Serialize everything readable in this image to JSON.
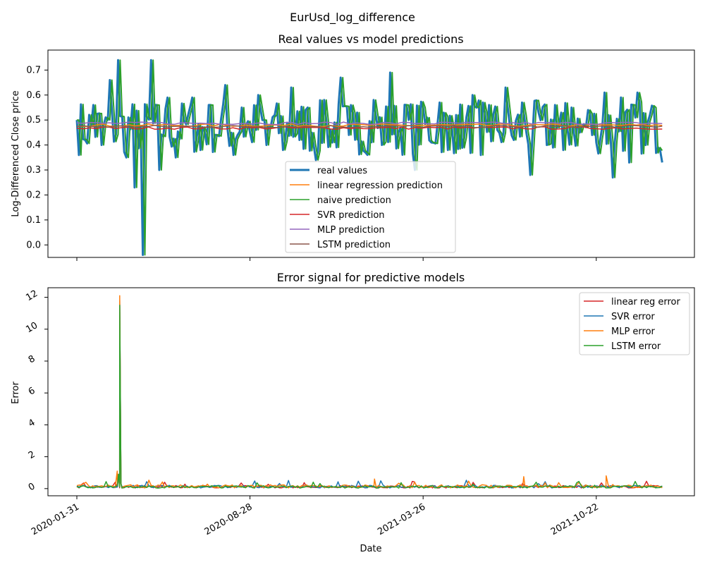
{
  "figure": {
    "suptitle": "EurUsd_log_difference"
  },
  "colors": {
    "real": "#1f77b4",
    "linreg": "#ff7f0e",
    "naive": "#2ca02c",
    "svr": "#d62728",
    "mlp": "#9467bd",
    "lstm": "#8c564b"
  },
  "chart_data": [
    {
      "type": "line",
      "title": "Real values vs model predictions",
      "xlabel": "",
      "ylabel": "Log-Differenced Close price",
      "ylim": [
        -0.05,
        0.78
      ],
      "yticks": [
        0.0,
        0.1,
        0.2,
        0.3,
        0.4,
        0.5,
        0.6,
        0.7
      ],
      "ytick_labels": [
        "0.0",
        "0.1",
        "0.2",
        "0.3",
        "0.4",
        "0.5",
        "0.6",
        "0.7"
      ],
      "x_range": [
        "2020-01-31",
        "2022-01-14"
      ],
      "legend_position": "lower-center",
      "grid": false,
      "series": [
        {
          "name": "real values",
          "color_key": "real",
          "x": [
            "2020-01-31",
            "2020-02-10",
            "2020-02-20",
            "2020-03-01",
            "2020-03-11",
            "2020-03-21",
            "2020-03-31",
            "2020-04-10",
            "2020-04-20",
            "2020-04-30",
            "2020-05-10",
            "2020-05-20",
            "2020-05-30",
            "2020-06-09",
            "2020-06-19",
            "2020-06-29",
            "2020-07-09",
            "2020-07-19",
            "2020-07-29",
            "2020-08-08",
            "2020-08-18",
            "2020-08-28",
            "2020-09-07",
            "2020-09-17",
            "2020-09-27",
            "2020-10-07",
            "2020-10-17",
            "2020-10-27",
            "2020-11-06",
            "2020-11-16",
            "2020-11-26",
            "2020-12-06",
            "2020-12-16",
            "2020-12-26",
            "2021-01-05",
            "2021-01-15",
            "2021-01-25",
            "2021-02-04",
            "2021-02-14",
            "2021-02-24",
            "2021-03-06",
            "2021-03-16",
            "2021-03-26",
            "2021-04-05",
            "2021-04-15",
            "2021-04-25",
            "2021-05-05",
            "2021-05-15",
            "2021-05-25",
            "2021-06-04",
            "2021-06-14",
            "2021-06-24",
            "2021-07-04",
            "2021-07-14",
            "2021-07-24",
            "2021-08-03",
            "2021-08-13",
            "2021-08-23",
            "2021-09-02",
            "2021-09-12",
            "2021-09-22",
            "2021-10-02",
            "2021-10-12",
            "2021-10-22",
            "2021-11-01",
            "2021-11-11",
            "2021-11-21",
            "2021-12-01",
            "2021-12-11",
            "2021-12-21",
            "2021-12-31",
            "2022-01-10"
          ],
          "values": [
            0.5,
            0.42,
            0.56,
            0.4,
            0.66,
            0.74,
            0.35,
            0.23,
            -0.04,
            0.74,
            0.3,
            0.59,
            0.35,
            0.5,
            0.59,
            0.38,
            0.56,
            0.44,
            0.64,
            0.36,
            0.55,
            0.45,
            0.6,
            0.4,
            0.52,
            0.38,
            0.63,
            0.42,
            0.55,
            0.34,
            0.58,
            0.41,
            0.67,
            0.44,
            0.53,
            0.37,
            0.58,
            0.4,
            0.69,
            0.45,
            0.56,
            0.3,
            0.55,
            0.41,
            0.57,
            0.38,
            0.52,
            0.43,
            0.6,
            0.36,
            0.56,
            0.46,
            0.63,
            0.42,
            0.57,
            0.28,
            0.53,
            0.4,
            0.56,
            0.38,
            0.55,
            0.45,
            0.54,
            0.41,
            0.61,
            0.27,
            0.59,
            0.33,
            0.61,
            0.4,
            0.55,
            0.33
          ]
        },
        {
          "name": "linear regression prediction",
          "color_key": "linreg",
          "constant": 0.479
        },
        {
          "name": "naive prediction",
          "color_key": "naive",
          "shift_of": "real values"
        },
        {
          "name": "SVR prediction",
          "color_key": "svr",
          "constant": 0.468
        },
        {
          "name": "MLP prediction",
          "color_key": "mlp",
          "constant": 0.487
        },
        {
          "name": "LSTM prediction",
          "color_key": "lstm",
          "constant": 0.474
        }
      ]
    },
    {
      "type": "line",
      "title": "Error signal for predictive models",
      "xlabel": "Date",
      "ylabel": "Error",
      "ylim": [
        -0.45,
        12.6
      ],
      "yticks": [
        0,
        2,
        4,
        6,
        8,
        10,
        12
      ],
      "ytick_labels": [
        "0",
        "2",
        "4",
        "6",
        "8",
        "10",
        "12"
      ],
      "xticks": [
        "2020-01-31",
        "2020-08-28",
        "2021-03-26",
        "2021-10-22"
      ],
      "x_range": [
        "2020-01-31",
        "2022-01-14"
      ],
      "legend_position": "upper-right",
      "grid": false,
      "series": [
        {
          "name": "linear reg error",
          "color_key": "svr",
          "spike": {
            "x": "2020-03-23",
            "value": 11.6
          },
          "baseline": 0.12
        },
        {
          "name": "SVR error",
          "color_key": "real",
          "spike": {
            "x": "2020-03-23",
            "value": 11.8
          },
          "baseline": 0.13
        },
        {
          "name": "MLP error",
          "color_key": "linreg",
          "spike": {
            "x": "2020-03-23",
            "value": 12.1
          },
          "baseline": 0.15,
          "peaks": [
            {
              "x": "2020-03-20",
              "value": 1.1
            },
            {
              "x": "2021-01-26",
              "value": 0.6
            },
            {
              "x": "2021-07-26",
              "value": 0.75
            },
            {
              "x": "2021-11-03",
              "value": 0.8
            }
          ]
        },
        {
          "name": "LSTM error",
          "color_key": "naive",
          "spike": {
            "x": "2020-03-23",
            "value": 11.5
          },
          "baseline": 0.11
        }
      ]
    }
  ]
}
